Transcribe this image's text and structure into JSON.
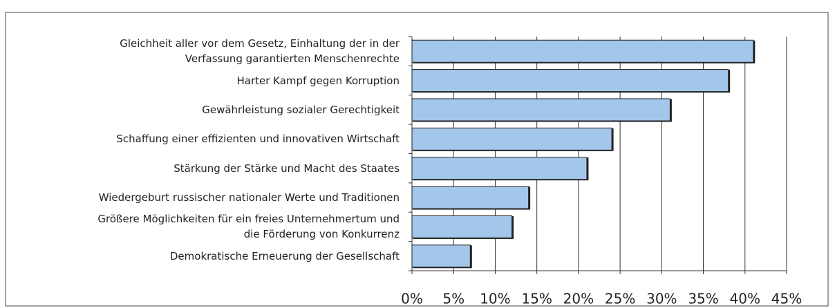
{
  "chart_data": {
    "type": "hbar",
    "categories": [
      "Gleichheit aller vor dem Gesetz, Einhaltung der in der\nVerfassung garantierten Menschenrechte",
      "Harter Kampf gegen Korruption",
      "Gewährleistung sozialer Gerechtigkeit",
      "Schaffung einer effizienten und innovativen Wirtschaft",
      "Stärkung der Stärke und Macht des Staates",
      "Wiedergeburt russischer nationaler Werte und Traditionen",
      "Größere Möglichkeiten für ein freies Unternehmertum und\ndie Förderung von Konkurrenz",
      "Demokratische Erneuerung der Gesellschaft"
    ],
    "values": [
      41,
      38,
      31,
      24,
      21,
      14,
      12,
      7
    ],
    "color": "#a3c7ea",
    "xlim": [
      0,
      45
    ],
    "xticks": [
      {
        "value": 0,
        "label": "0%"
      },
      {
        "value": 5,
        "label": "5%"
      },
      {
        "value": 10,
        "label": "10%"
      },
      {
        "value": 15,
        "label": "15%"
      },
      {
        "value": 20,
        "label": "20%"
      },
      {
        "value": 25,
        "label": "25%"
      },
      {
        "value": 30,
        "label": "30%"
      },
      {
        "value": 35,
        "label": "35%"
      },
      {
        "value": 40,
        "label": "40%"
      },
      {
        "value": 45,
        "label": "45%"
      }
    ],
    "grid": true
  }
}
